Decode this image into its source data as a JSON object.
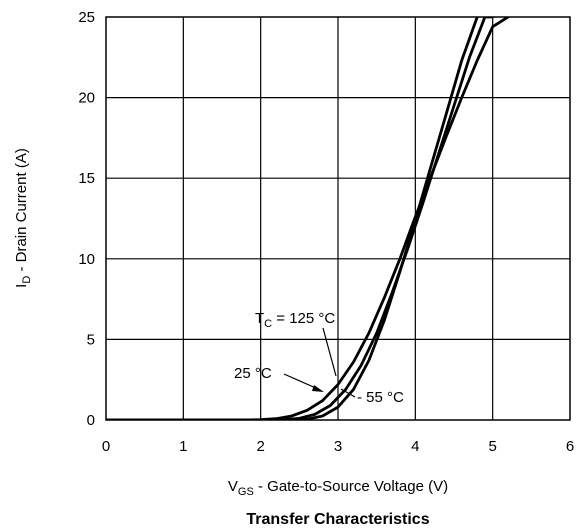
{
  "chart_data": {
    "type": "line",
    "title": "Transfer Characteristics",
    "xlabel": {
      "main": "V",
      "sub": "GS",
      "rest": " - Gate-to-Source Voltage (V)"
    },
    "ylabel": {
      "main": "I",
      "sub": "D",
      "rest": " - Drain Current (A)"
    },
    "xlim": [
      0,
      6
    ],
    "ylim": [
      0,
      25
    ],
    "x_ticks": [
      0,
      1,
      2,
      3,
      4,
      5,
      6
    ],
    "y_ticks": [
      0,
      5,
      10,
      15,
      20,
      25
    ],
    "grid": true,
    "line_color": "#000000",
    "series": [
      {
        "name": "T_C = 125 °C",
        "x": [
          0,
          1.0,
          1.8,
          2.0,
          2.2,
          2.4,
          2.6,
          2.8,
          3.0,
          3.2,
          3.4,
          3.6,
          3.8,
          4.0,
          4.2,
          4.4,
          4.6,
          4.8,
          5.0,
          5.2
        ],
        "y": [
          0,
          0,
          0,
          0.02,
          0.08,
          0.25,
          0.6,
          1.2,
          2.2,
          3.6,
          5.4,
          7.6,
          10.0,
          12.6,
          15.1,
          17.6,
          20.0,
          22.3,
          24.4,
          25.0
        ]
      },
      {
        "name": "25 °C",
        "x": [
          0,
          1.0,
          2.0,
          2.3,
          2.5,
          2.7,
          2.9,
          3.1,
          3.3,
          3.5,
          3.7,
          3.9,
          4.1,
          4.3,
          4.5,
          4.7,
          4.9,
          5.0
        ],
        "y": [
          0,
          0,
          0,
          0.02,
          0.1,
          0.35,
          0.9,
          1.9,
          3.4,
          5.4,
          7.9,
          10.6,
          13.5,
          16.5,
          19.5,
          22.5,
          25.0,
          25.0
        ]
      },
      {
        "name": "- 55 °C",
        "x": [
          0,
          1.0,
          2.0,
          2.4,
          2.6,
          2.8,
          3.0,
          3.2,
          3.4,
          3.6,
          3.8,
          4.0,
          4.2,
          4.4,
          4.6,
          4.8
        ],
        "y": [
          0,
          0,
          0,
          0.0,
          0.05,
          0.25,
          0.8,
          1.9,
          3.7,
          6.2,
          9.2,
          12.4,
          15.7,
          19.0,
          22.3,
          25.0
        ]
      }
    ],
    "annotations": [
      {
        "main": "T",
        "sub": "C",
        "rest": " = 125 °C"
      },
      {
        "text": "25 °C"
      },
      {
        "text": "- 55 °C"
      }
    ]
  }
}
